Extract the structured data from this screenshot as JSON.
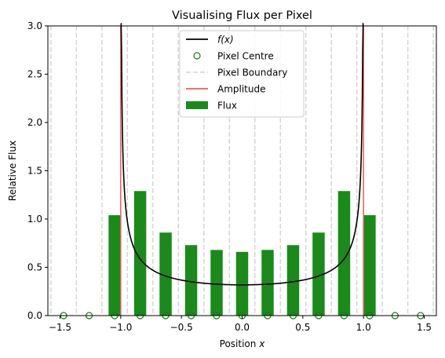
{
  "chart_data": {
    "type": "bar",
    "title": "Visualising Flux per Pixel",
    "xlabel": "Position x",
    "xlabel_main": "Position",
    "xlabel_var": "x",
    "ylabel": "Relative Flux",
    "xlim": [
      -1.6,
      1.6
    ],
    "ylim": [
      0,
      3.0
    ],
    "grid": false,
    "legend_placement": "upper center",
    "x_ticks": [
      -1.5,
      -1.0,
      -0.5,
      0.0,
      0.5,
      1.0,
      1.5
    ],
    "x_tick_labels": [
      "−1.5",
      "−1.0",
      "−0.5",
      "0.0",
      "0.5",
      "1.0",
      "1.5"
    ],
    "y_ticks": [
      0.0,
      0.5,
      1.0,
      1.5,
      2.0,
      2.5,
      3.0
    ],
    "y_tick_labels": [
      "0.0",
      "0.5",
      "1.0",
      "1.5",
      "2.0",
      "2.5",
      "3.0"
    ],
    "pixel_centres": [
      -1.47,
      -1.26,
      -1.05,
      -0.84,
      -0.63,
      -0.42,
      -0.21,
      0.0,
      0.21,
      0.42,
      0.63,
      0.84,
      1.05,
      1.26,
      1.47
    ],
    "pixel_boundaries": [
      -1.575,
      -1.365,
      -1.155,
      -0.945,
      -0.735,
      -0.525,
      -0.315,
      -0.105,
      0.105,
      0.315,
      0.525,
      0.735,
      0.945,
      1.155,
      1.365,
      1.575
    ],
    "flux": [
      0,
      0,
      1.04,
      1.29,
      0.86,
      0.73,
      0.68,
      0.66,
      0.68,
      0.73,
      0.86,
      1.29,
      1.04,
      0,
      0
    ],
    "bar_width": 0.1,
    "amplitude_x": [
      -1.0,
      1.0
    ],
    "curve": "f(x) = 1 / (pi * sqrt(1 - x^2))",
    "legend": [
      {
        "label_plain": "",
        "label_var": "f(x)",
        "kind": "line",
        "color": "#000000"
      },
      {
        "label_plain": "Pixel Centre",
        "label_var": "",
        "kind": "marker",
        "color": "#1a7a1a"
      },
      {
        "label_plain": "Pixel Boundary",
        "label_var": "",
        "kind": "dashed",
        "color": "#d3d3d3"
      },
      {
        "label_plain": "Amplitude",
        "label_var": "",
        "kind": "line",
        "color": "#ef5b5b"
      },
      {
        "label_plain": "Flux",
        "label_var": "",
        "kind": "patch",
        "color": "#1a8a1a"
      }
    ],
    "colors": {
      "curve": "#000000",
      "pixel_centre": "#1a7a1a",
      "pixel_boundary": "#d3d3d3",
      "amplitude": "#ef5b5b",
      "flux": "#1a8a1a"
    }
  }
}
